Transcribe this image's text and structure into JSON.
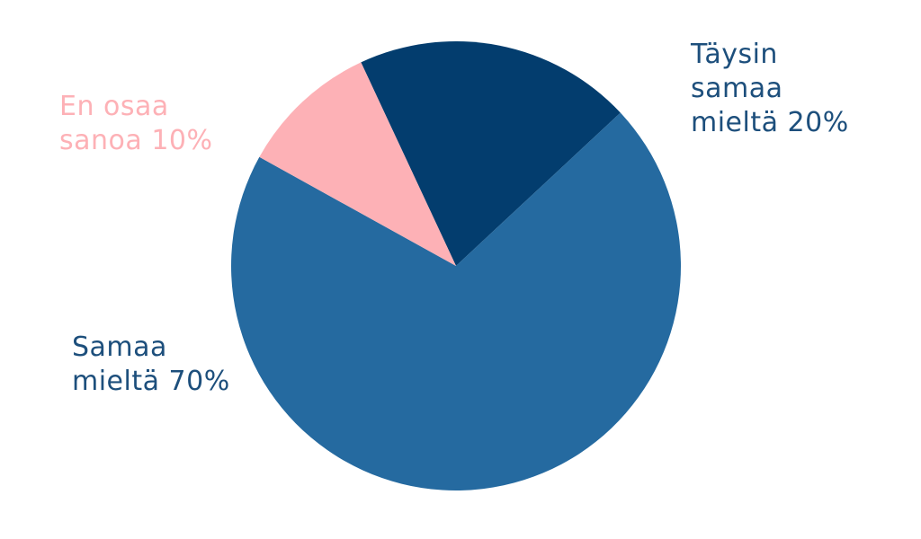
{
  "chart_data": {
    "type": "pie",
    "categories": [
      "Täysin samaa mieltä",
      "Samaa mieltä",
      "En osaa sanoa"
    ],
    "values": [
      20,
      70,
      10
    ],
    "value_labels": [
      "20%",
      "70%",
      "10%"
    ],
    "colors": [
      "#033d6e",
      "#256aa0",
      "#fdb1b6"
    ]
  }
}
